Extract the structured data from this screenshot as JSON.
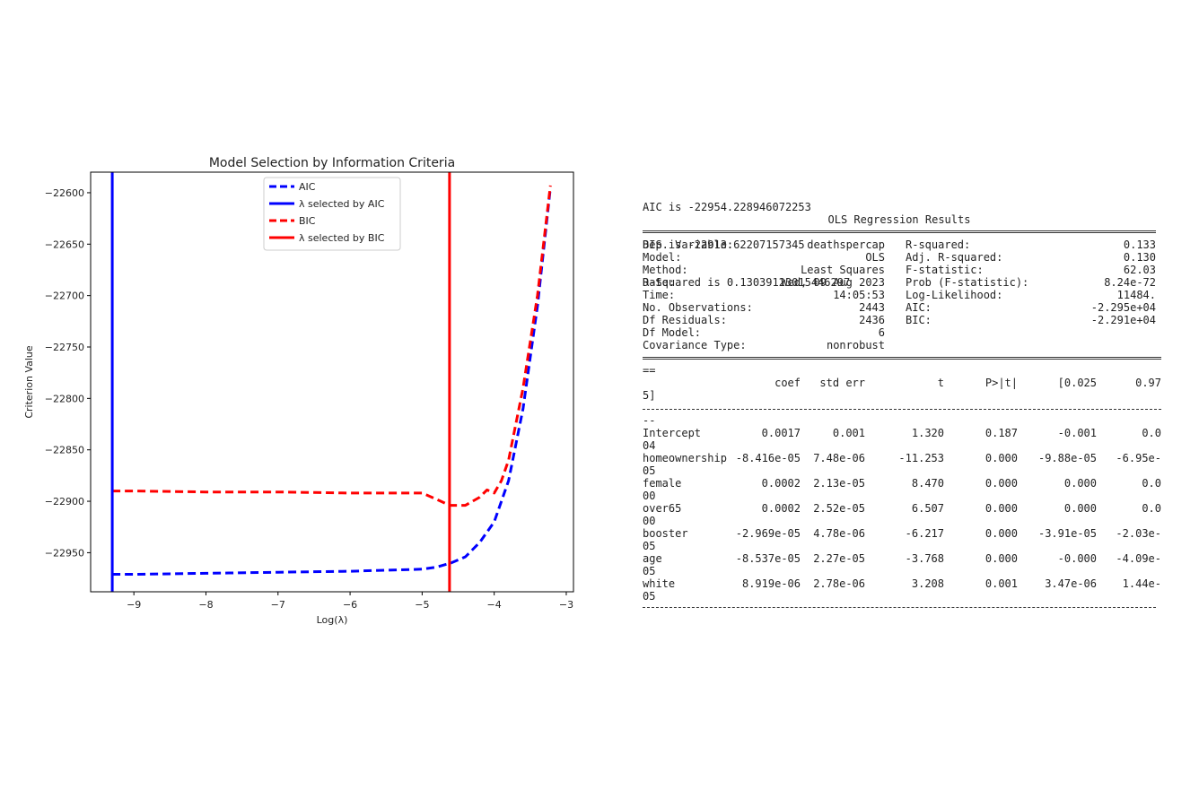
{
  "chart_data": {
    "type": "line",
    "title": "Model Selection by Information Criteria",
    "xlabel": "Log(λ)",
    "ylabel": "Criterion Value",
    "xlim": [
      -9.6,
      -2.9
    ],
    "ylim": [
      -22988,
      -22580
    ],
    "xticks": [
      -9,
      -8,
      -7,
      -6,
      -5,
      -4,
      -3
    ],
    "xtick_labels": [
      "−9",
      "−8",
      "−7",
      "−6",
      "−5",
      "−4",
      "−3"
    ],
    "yticks": [
      -22600,
      -22650,
      -22700,
      -22750,
      -22800,
      -22850,
      -22900,
      -22950
    ],
    "ytick_labels": [
      "−22600",
      "−22650",
      "−22700",
      "−22750",
      "−22800",
      "−22850",
      "−22900",
      "−22950"
    ],
    "legend_position": "top-center",
    "series": [
      {
        "name": "AIC",
        "color": "#0000ff",
        "style": "dashed",
        "x": [
          -9.3,
          -9.0,
          -8.0,
          -7.0,
          -6.0,
          -5.0,
          -4.8,
          -4.6,
          -4.4,
          -4.2,
          -4.0,
          -3.8,
          -3.6,
          -3.4,
          -3.22
        ],
        "y": [
          -22971,
          -22971,
          -22970,
          -22969,
          -22968,
          -22966,
          -22964,
          -22960,
          -22954,
          -22940,
          -22920,
          -22880,
          -22810,
          -22710,
          -22595
        ]
      },
      {
        "name": "BIC",
        "color": "#ff0000",
        "style": "dashed",
        "x": [
          -9.3,
          -9.0,
          -8.0,
          -7.0,
          -6.0,
          -5.0,
          -4.8,
          -4.62,
          -4.4,
          -4.2,
          -4.1,
          -4.0,
          -3.9,
          -3.8,
          -3.6,
          -3.4,
          -3.22
        ],
        "y": [
          -22890,
          -22890,
          -22891,
          -22891,
          -22892,
          -22892,
          -22898,
          -22904,
          -22904,
          -22896,
          -22889,
          -22892,
          -22880,
          -22860,
          -22790,
          -22700,
          -22593
        ]
      }
    ],
    "vlines": [
      {
        "name": "λ selected by AIC",
        "x": -9.3,
        "color": "#0000ff"
      },
      {
        "name": "λ selected by BIC",
        "x": -4.62,
        "color": "#ff0000"
      }
    ]
  },
  "output": {
    "stats_lines": [
      "AIC is -22954.228946072253",
      "BIS is -22913.62207157345",
      "R-Squared is 0.13039123015446297"
    ],
    "title": "OLS Regression Results",
    "summary_rows": [
      {
        "l_label": "Dep. Variable:",
        "l_value": "deathspercap",
        "r_label": "R-squared:",
        "r_value": "0.133"
      },
      {
        "l_label": "Model:",
        "l_value": "OLS",
        "r_label": "Adj. R-squared:",
        "r_value": "0.130"
      },
      {
        "l_label": "Method:",
        "l_value": "Least Squares",
        "r_label": "F-statistic:",
        "r_value": "62.03"
      },
      {
        "l_label": "Date:",
        "l_value": "Wed, 09 Aug 2023",
        "r_label": "Prob (F-statistic):",
        "r_value": "8.24e-72"
      },
      {
        "l_label": "Time:",
        "l_value": "14:05:53",
        "r_label": "Log-Likelihood:",
        "r_value": "11484."
      },
      {
        "l_label": "No. Observations:",
        "l_value": "2443",
        "r_label": "AIC:",
        "r_value": "-2.295e+04"
      },
      {
        "l_label": "Df Residuals:",
        "l_value": "2436",
        "r_label": "BIC:",
        "r_value": "-2.291e+04"
      },
      {
        "l_label": "Df Model:",
        "l_value": "6",
        "r_label": "",
        "r_value": ""
      },
      {
        "l_label": "Covariance Type:",
        "l_value": "nonrobust",
        "r_label": "",
        "r_value": ""
      }
    ],
    "wrap_after_rule": "==",
    "coef_header": [
      "coef",
      "std err",
      "t",
      "P>|t|",
      "[0.025",
      "0.97"
    ],
    "coef_header_wrap": "5]",
    "wrap_after_dash": "--",
    "coef_rows": [
      {
        "name": "Intercept",
        "values": [
          "0.0017",
          "0.001",
          "1.320",
          "0.187",
          "-0.001",
          "0.0"
        ],
        "wrap": "04"
      },
      {
        "name": "homeownership",
        "values": [
          "-8.416e-05",
          "7.48e-06",
          "-11.253",
          "0.000",
          "-9.88e-05",
          "-6.95e-"
        ],
        "wrap": "05"
      },
      {
        "name": "female",
        "values": [
          "0.0002",
          "2.13e-05",
          "8.470",
          "0.000",
          "0.000",
          "0.0"
        ],
        "wrap": "00"
      },
      {
        "name": "over65",
        "values": [
          "0.0002",
          "2.52e-05",
          "6.507",
          "0.000",
          "0.000",
          "0.0"
        ],
        "wrap": "00"
      },
      {
        "name": "booster",
        "values": [
          "-2.969e-05",
          "4.78e-06",
          "-6.217",
          "0.000",
          "-3.91e-05",
          "-2.03e-"
        ],
        "wrap": "05"
      },
      {
        "name": "age",
        "values": [
          "-8.537e-05",
          "2.27e-05",
          "-3.768",
          "0.000",
          "-0.000",
          "-4.09e-"
        ],
        "wrap": "05"
      },
      {
        "name": "white",
        "values": [
          "8.919e-06",
          "2.78e-06",
          "3.208",
          "0.001",
          "3.47e-06",
          "1.44e-"
        ],
        "wrap": "05"
      }
    ]
  }
}
